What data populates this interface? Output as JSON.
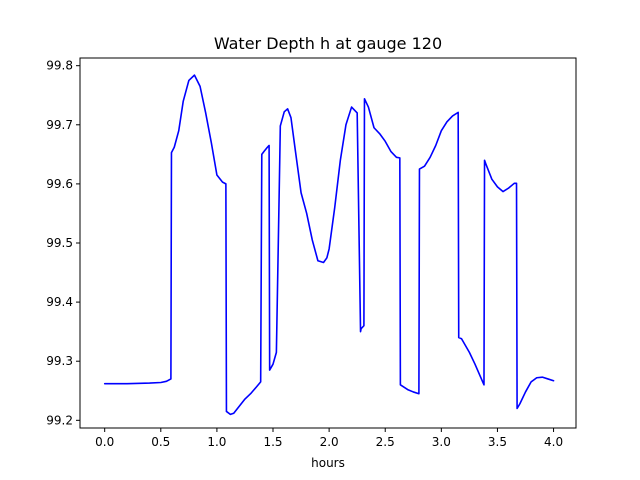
{
  "chart_data": {
    "type": "line",
    "title": "Water Depth h at gauge 120",
    "xlabel": "hours",
    "ylabel": "",
    "xlim": [
      -0.22,
      4.2
    ],
    "ylim": [
      99.187,
      99.813
    ],
    "xticks": [
      0.0,
      0.5,
      1.0,
      1.5,
      2.0,
      2.5,
      3.0,
      3.5,
      4.0
    ],
    "xtick_labels": [
      "0.0",
      "0.5",
      "1.0",
      "1.5",
      "2.0",
      "2.5",
      "3.0",
      "3.5",
      "4.0"
    ],
    "yticks": [
      99.2,
      99.3,
      99.4,
      99.5,
      99.6,
      99.7,
      99.8
    ],
    "ytick_labels": [
      "99.2",
      "99.3",
      "99.4",
      "99.5",
      "99.6",
      "99.7",
      "99.8"
    ],
    "grid": false,
    "series": [
      {
        "color": "#0000ff",
        "x": [
          0.0,
          0.2,
          0.4,
          0.5,
          0.55,
          0.59,
          0.595,
          0.62,
          0.66,
          0.7,
          0.75,
          0.8,
          0.85,
          0.9,
          0.95,
          1.0,
          1.05,
          1.08,
          1.085,
          1.12,
          1.15,
          1.2,
          1.25,
          1.3,
          1.35,
          1.39,
          1.4,
          1.42,
          1.45,
          1.465,
          1.47,
          1.5,
          1.53,
          1.56,
          1.565,
          1.6,
          1.63,
          1.66,
          1.7,
          1.75,
          1.8,
          1.85,
          1.9,
          1.95,
          1.98,
          2.0,
          2.05,
          2.1,
          2.15,
          2.2,
          2.25,
          2.28,
          2.285,
          2.31,
          2.315,
          2.32,
          2.35,
          2.4,
          2.45,
          2.5,
          2.55,
          2.6,
          2.63,
          2.635,
          2.7,
          2.75,
          2.8,
          2.805,
          2.85,
          2.9,
          2.95,
          3.0,
          3.05,
          3.1,
          3.15,
          3.155,
          3.18,
          3.25,
          3.3,
          3.38,
          3.385,
          3.4,
          3.45,
          3.5,
          3.55,
          3.6,
          3.65,
          3.67,
          3.675,
          3.7,
          3.75,
          3.8,
          3.85,
          3.9,
          3.95,
          4.0
        ],
        "y": [
          99.262,
          99.262,
          99.263,
          99.264,
          99.266,
          99.27,
          99.653,
          99.662,
          99.69,
          99.74,
          99.775,
          99.784,
          99.765,
          99.72,
          99.67,
          99.615,
          99.603,
          99.6,
          99.215,
          99.21,
          99.212,
          99.224,
          99.236,
          99.245,
          99.256,
          99.265,
          99.65,
          99.655,
          99.662,
          99.665,
          99.285,
          99.295,
          99.315,
          99.64,
          99.698,
          99.722,
          99.727,
          99.712,
          99.655,
          99.585,
          99.55,
          99.505,
          99.47,
          99.467,
          99.475,
          99.49,
          99.56,
          99.64,
          99.7,
          99.73,
          99.72,
          99.35,
          99.355,
          99.36,
          99.744,
          99.742,
          99.73,
          99.695,
          99.685,
          99.672,
          99.655,
          99.645,
          99.644,
          99.26,
          99.252,
          99.248,
          99.245,
          99.625,
          99.63,
          99.645,
          99.665,
          99.69,
          99.705,
          99.715,
          99.721,
          99.34,
          99.338,
          99.315,
          99.295,
          99.26,
          99.64,
          99.632,
          99.608,
          99.595,
          99.587,
          99.593,
          99.601,
          99.601,
          99.22,
          99.228,
          99.248,
          99.265,
          99.272,
          99.273,
          99.27,
          99.267
        ]
      }
    ]
  }
}
